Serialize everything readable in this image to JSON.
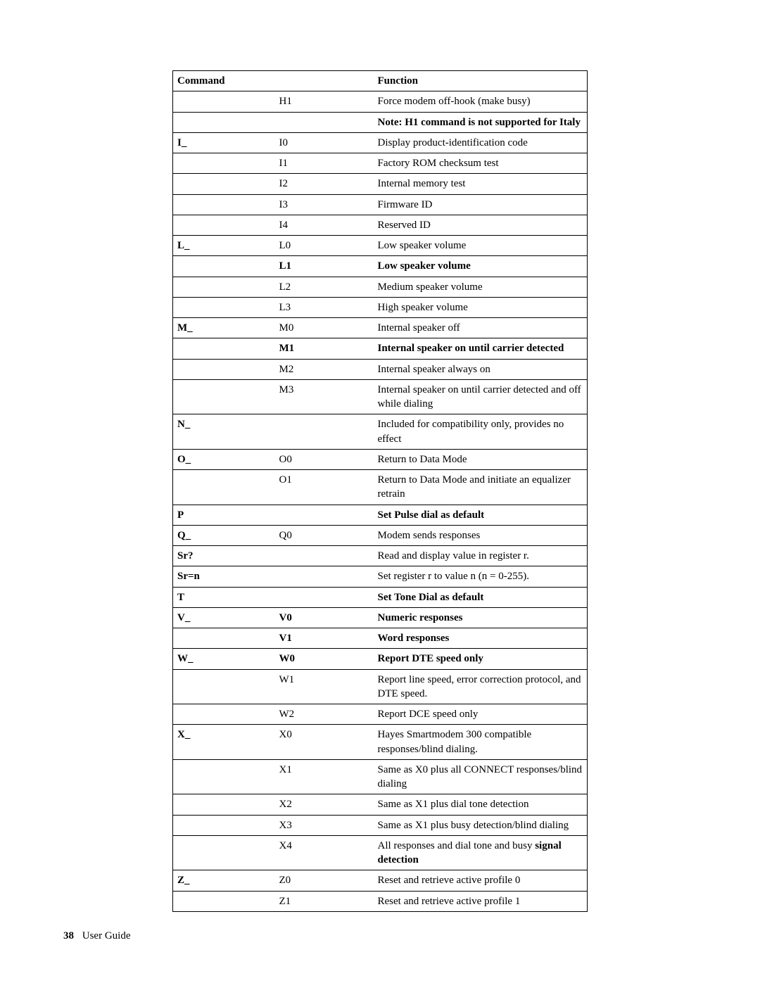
{
  "table": {
    "headers": {
      "col1": "Command",
      "col2": "",
      "col3": "Function"
    },
    "rows": [
      {
        "c1": "",
        "c2": "H1",
        "c3": "Force modem off-hook (make busy)",
        "bold": []
      },
      {
        "c1": "",
        "c2": "",
        "c3_pre": "Note: H1 command is not supported for Italy",
        "bold3": true,
        "notop": true
      },
      {
        "c1": "I_",
        "c2": "I0",
        "c3": "Display product-identification code",
        "bold1": true
      },
      {
        "c1": "",
        "c2": "I1",
        "c3": "Factory ROM checksum test"
      },
      {
        "c1": "",
        "c2": "I2",
        "c3": "Internal memory test"
      },
      {
        "c1": "",
        "c2": "I3",
        "c3": "Firmware ID"
      },
      {
        "c1": "",
        "c2": "I4",
        "c3": "Reserved ID"
      },
      {
        "c1": "L_",
        "c2": "L0",
        "c3": "Low speaker volume",
        "bold1": true
      },
      {
        "c1": "",
        "c2": "L1",
        "c3": "Low speaker volume",
        "bold2": true,
        "bold3": true
      },
      {
        "c1": "",
        "c2": "L2",
        "c3": "Medium speaker volume"
      },
      {
        "c1": "",
        "c2": "L3",
        "c3": "High speaker volume"
      },
      {
        "c1": "M_",
        "c2": "M0",
        "c3": "Internal speaker off",
        "bold1": true
      },
      {
        "c1": "",
        "c2": "M1",
        "c3": "Internal speaker on until carrier detected",
        "bold2": true,
        "bold3": true
      },
      {
        "c1": "",
        "c2": "M2",
        "c3": "Internal speaker always on"
      },
      {
        "c1": "",
        "c2": "M3",
        "c3": "Internal speaker on until carrier detected and off while dialing"
      },
      {
        "c1": "N_",
        "c2": "",
        "c3": "Included for compatibility only, provides no effect",
        "bold1": true
      },
      {
        "c1": "O_",
        "c2": "O0",
        "c3": "Return to Data Mode",
        "bold1": true
      },
      {
        "c1": "",
        "c2": "O1",
        "c3": "Return to Data Mode and initiate an equalizer retrain"
      },
      {
        "c1": "P",
        "c2": "",
        "c3": "Set Pulse dial as default",
        "bold1": true,
        "bold3": true
      },
      {
        "c1": "Q_",
        "c2": "Q0",
        "c3": "Modem sends responses",
        "bold1": true
      },
      {
        "c1": "Sr?",
        "c2": "",
        "c3": "Read and display value in register r.",
        "bold1": true
      },
      {
        "c1": "Sr=n",
        "c2": "",
        "c3": "Set register r to value n (n = 0-255).",
        "bold1": true
      },
      {
        "c1": "T",
        "c2": "",
        "c3": "Set Tone Dial as default",
        "bold1": true,
        "bold3": true
      },
      {
        "c1": "V_",
        "c2": "V0",
        "c3": "Numeric responses",
        "bold1": true,
        "bold2": true,
        "bold3": true
      },
      {
        "c1": "",
        "c2": "V1",
        "c3": "Word responses",
        "bold2": true,
        "bold3": true
      },
      {
        "c1": "W_",
        "c2": "W0",
        "c3": "Report DTE speed only",
        "bold1": true,
        "bold2": true,
        "bold3": true
      },
      {
        "c1": "",
        "c2": "W1",
        "c3": "Report line speed, error correction protocol, and DTE speed."
      },
      {
        "c1": "",
        "c2": "W2",
        "c3": "Report DCE speed only"
      },
      {
        "c1": "X_",
        "c2": "X0",
        "c3": "Hayes Smartmodem 300 compatible responses/blind dialing.",
        "bold1": true
      },
      {
        "c1": "",
        "c2": "X1",
        "c3": "Same as X0 plus all CONNECT responses/blind dialing"
      },
      {
        "c1": "",
        "c2": "X2",
        "c3": "Same as X1 plus dial tone detection"
      },
      {
        "c1": "",
        "c2": "X3",
        "c3": "Same as X1 plus busy detection/blind dialing"
      },
      {
        "c1": "",
        "c2": "X4",
        "c3_html": "All responses and dial tone and busy <b>signal detection</b>"
      },
      {
        "c1": "Z_",
        "c2": "Z0",
        "c3": "Reset and retrieve active profile 0",
        "bold1": true
      },
      {
        "c1": "",
        "c2": "Z1",
        "c3": "Reset and retrieve active profile 1"
      }
    ]
  },
  "footer": {
    "page_number": "38",
    "title": "User Guide"
  }
}
